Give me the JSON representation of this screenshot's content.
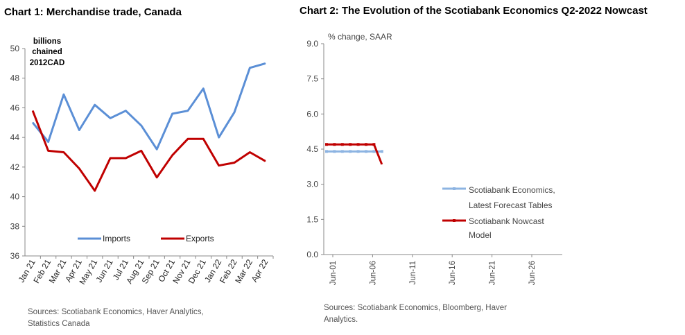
{
  "chart1": {
    "title": "Chart 1: Merchandise trade, Canada",
    "unit_label": [
      "billions",
      "chained",
      "2012CAD"
    ],
    "sources": [
      "Sources: Scotiabank Economics, Haver Analytics,",
      "Statistics Canada"
    ]
  },
  "chart2": {
    "title": "Chart 2: The Evolution of the Scotiabank Economics Q2-2022 Nowcast",
    "unit_label": "% change, SAAR",
    "sources": [
      "Sources: Scotiabank Economics, Bloomberg, Haver",
      "Analytics."
    ]
  },
  "chart_data": [
    {
      "type": "line",
      "title": "Chart 1: Merchandise trade, Canada",
      "ylabel": "billions chained 2012CAD",
      "ylim": [
        36,
        50
      ],
      "yticks": [
        36,
        38,
        40,
        42,
        44,
        46,
        48,
        50
      ],
      "categories": [
        "Jan 21",
        "Feb 21",
        "Mar 21",
        "Apr 21",
        "May 21",
        "Jun 21",
        "Jul 21",
        "Aug 21",
        "Sep 21",
        "Oct 21",
        "Nov 21",
        "Dec 21",
        "Jan 22",
        "Feb 22",
        "Mar 22",
        "Apr 22"
      ],
      "legend_position": "bottom",
      "series": [
        {
          "name": "Imports",
          "color": "#5b8fd6",
          "values": [
            45.0,
            43.7,
            46.9,
            44.5,
            46.2,
            45.3,
            45.8,
            44.8,
            43.2,
            45.6,
            45.8,
            47.3,
            44.0,
            45.7,
            48.7,
            49.0
          ]
        },
        {
          "name": "Exports",
          "color": "#c00000",
          "values": [
            45.8,
            43.1,
            43.0,
            41.9,
            40.4,
            42.6,
            42.6,
            43.1,
            41.3,
            42.8,
            43.9,
            43.9,
            42.1,
            42.3,
            43.0,
            42.4
          ]
        }
      ]
    },
    {
      "type": "line",
      "title": "Chart 2: The Evolution of the Scotiabank Economics Q2-2022 Nowcast",
      "ylabel": "% change, SAAR",
      "ylim": [
        0,
        9
      ],
      "yticks": [
        "0.0",
        "1.5",
        "3.0",
        "4.5",
        "6.0",
        "7.5",
        "9.0"
      ],
      "xticks": [
        "Jun-01",
        "Jun-06",
        "Jun-11",
        "Jun-16",
        "Jun-21",
        "Jun-26"
      ],
      "legend_position": "right",
      "series": [
        {
          "name": "Scotiabank Economics, Latest Forecast Tables",
          "color": "#8db4e2",
          "x": [
            1,
            2,
            3,
            4,
            5,
            6,
            7,
            8
          ],
          "values": [
            4.4,
            4.4,
            4.4,
            4.4,
            4.4,
            4.4,
            4.4,
            4.4
          ]
        },
        {
          "name": "Scotiabank Nowcast Model",
          "color": "#c00000",
          "x": [
            1,
            2,
            3,
            4,
            5,
            6,
            7,
            8
          ],
          "values": [
            4.7,
            4.7,
            4.7,
            4.7,
            4.7,
            4.7,
            4.7,
            3.85
          ]
        }
      ]
    }
  ]
}
